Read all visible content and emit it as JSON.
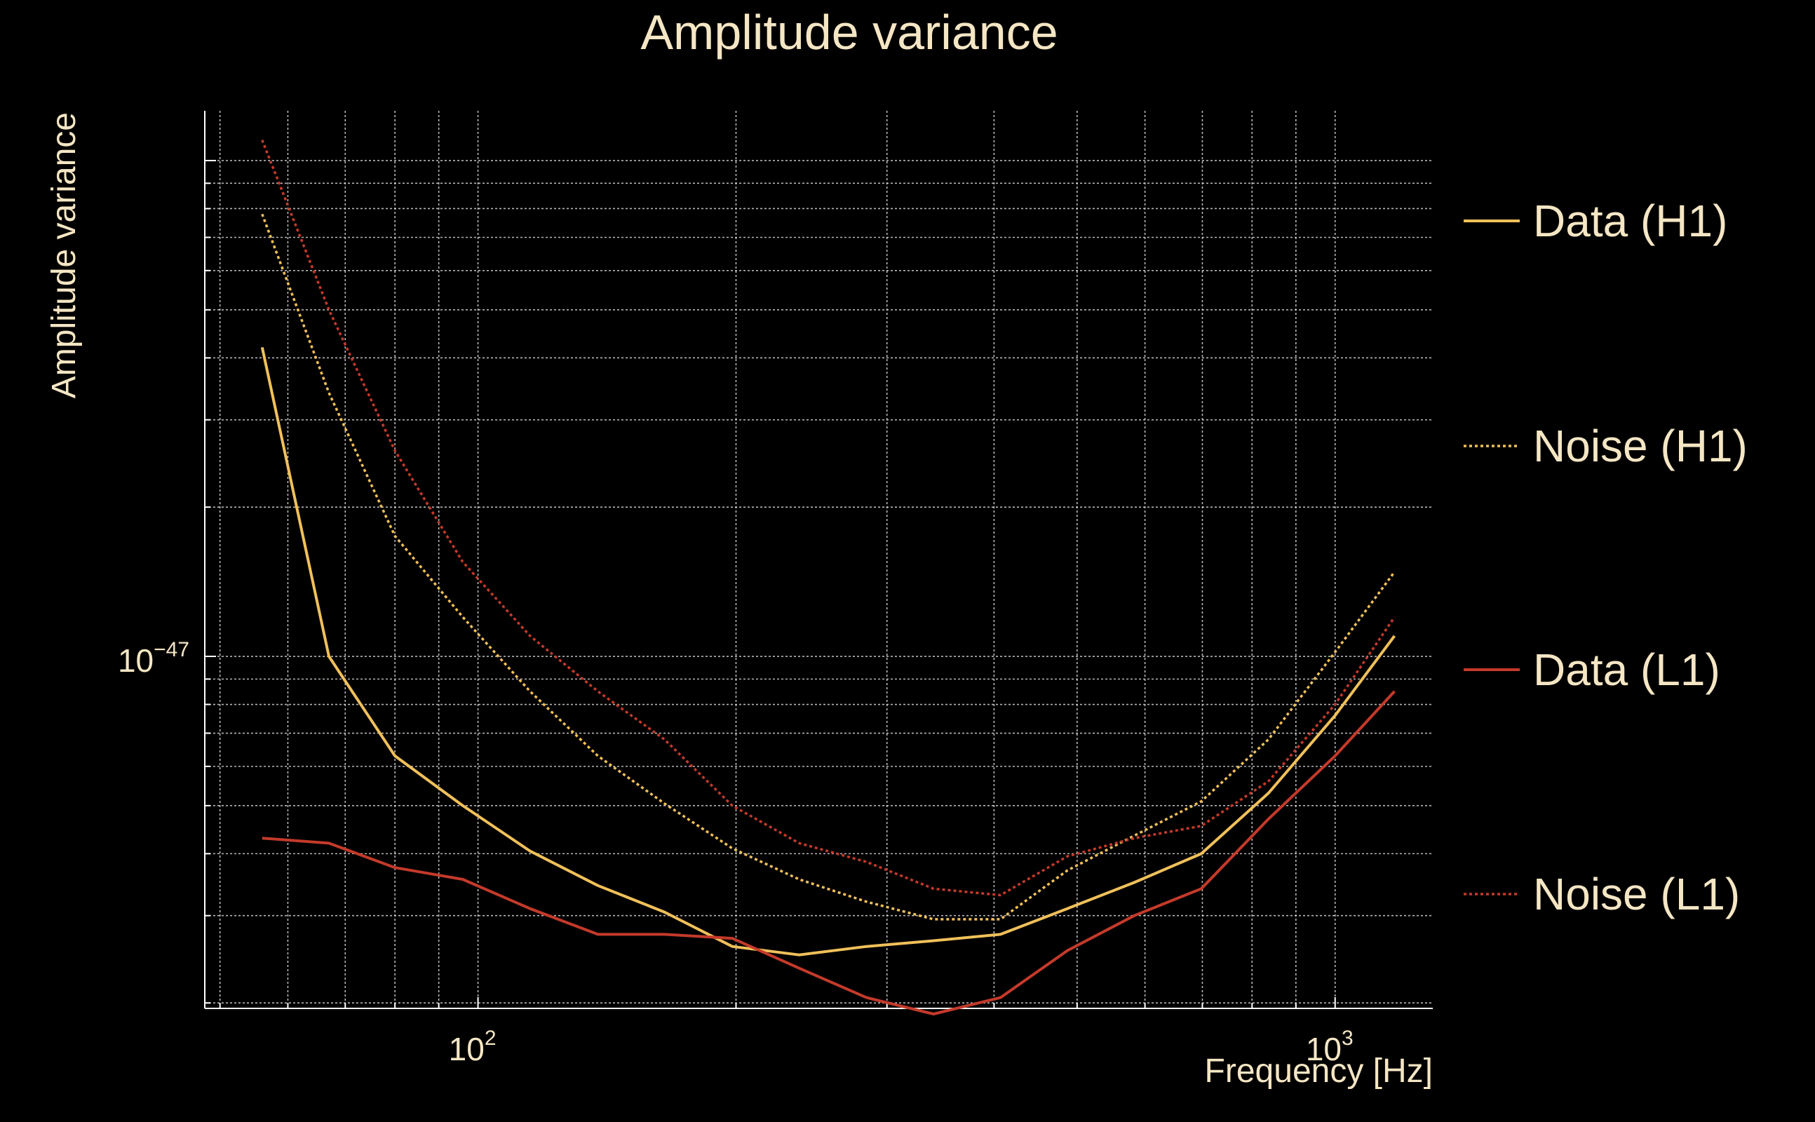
{
  "chart_data": {
    "type": "line",
    "title": "Amplitude variance",
    "xlabel": "Frequency [Hz]",
    "ylabel": "Amplitude variance",
    "x_scale": "log",
    "y_scale": "log",
    "xlim": [
      48,
      1300
    ],
    "ylim": [
      1.95e-48,
      1.26e-46
    ],
    "x_ticks": [
      {
        "value": 100,
        "base": "10",
        "exp": "2"
      },
      {
        "value": 1000,
        "base": "10",
        "exp": "3"
      }
    ],
    "y_ticks": [
      {
        "value": 1e-47,
        "base": "10",
        "exp": "−47"
      }
    ],
    "grid": true,
    "legend_position": "right",
    "x": [
      56,
      67,
      80,
      96,
      115,
      138,
      165,
      198,
      237,
      284,
      340,
      407,
      487,
      583,
      698,
      836,
      1000,
      1173
    ],
    "series": [
      {
        "name": "Data (H1)",
        "color": "#f0c05a",
        "style": "solid",
        "values": [
          4.2e-47,
          1e-47,
          6.3e-48,
          5e-48,
          4.05e-48,
          3.45e-48,
          3.05e-48,
          2.6e-48,
          2.5e-48,
          2.6e-48,
          2.67e-48,
          2.75e-48,
          3.1e-48,
          3.5e-48,
          4e-48,
          5.3e-48,
          7.6e-48,
          1.1e-47
        ]
      },
      {
        "name": "Noise (H1)",
        "color": "#f0c05a",
        "style": "dotted",
        "values": [
          7.8e-47,
          3.4e-47,
          1.75e-47,
          1.2e-47,
          8.5e-48,
          6.3e-48,
          5.05e-48,
          4.1e-48,
          3.55e-48,
          3.2e-48,
          2.95e-48,
          2.95e-48,
          3.7e-48,
          4.35e-48,
          5.1e-48,
          6.8e-48,
          1.02e-47,
          1.48e-47
        ]
      },
      {
        "name": "Data (L1)",
        "color": "#c43a2a",
        "style": "solid",
        "values": [
          4.3e-48,
          4.2e-48,
          3.75e-48,
          3.55e-48,
          3.1e-48,
          2.75e-48,
          2.75e-48,
          2.7e-48,
          2.35e-48,
          2.05e-48,
          1.9e-48,
          2.05e-48,
          2.55e-48,
          3e-48,
          3.4e-48,
          4.7e-48,
          6.3e-48,
          8.5e-48
        ]
      },
      {
        "name": "Noise (L1)",
        "color": "#c43a2a",
        "style": "dotted",
        "values": [
          1.1e-46,
          5e-47,
          2.6e-47,
          1.55e-47,
          1.1e-47,
          8.5e-48,
          6.8e-48,
          5e-48,
          4.2e-48,
          3.85e-48,
          3.4e-48,
          3.3e-48,
          3.95e-48,
          4.3e-48,
          4.55e-48,
          5.6e-48,
          8e-48,
          1.2e-47
        ]
      }
    ]
  }
}
